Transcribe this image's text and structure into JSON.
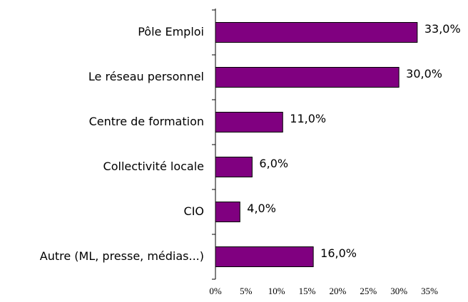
{
  "chart_data": {
    "type": "bar",
    "orientation": "horizontal",
    "categories": [
      "Pôle Emploi",
      "Le réseau  personnel",
      "Centre de formation",
      "Collectivité locale",
      "CIO",
      "Autre (ML, presse, médias...)"
    ],
    "values": [
      33,
      30,
      11,
      6,
      4,
      16
    ],
    "value_labels": [
      "33,0%",
      "30,0%",
      "11,0%",
      "6,0%",
      "4,0%",
      "16,0%"
    ],
    "color": "#800080",
    "xlim": [
      0,
      35
    ],
    "xticks": [
      {
        "value": 0,
        "label": "0%"
      },
      {
        "value": 5,
        "label": "5%"
      },
      {
        "value": 10,
        "label": "10%"
      },
      {
        "value": 15,
        "label": "15%"
      },
      {
        "value": 20,
        "label": "20%"
      },
      {
        "value": 25,
        "label": "25%"
      },
      {
        "value": 30,
        "label": "30%"
      },
      {
        "value": 35,
        "label": "35%"
      }
    ],
    "grid": false
  }
}
